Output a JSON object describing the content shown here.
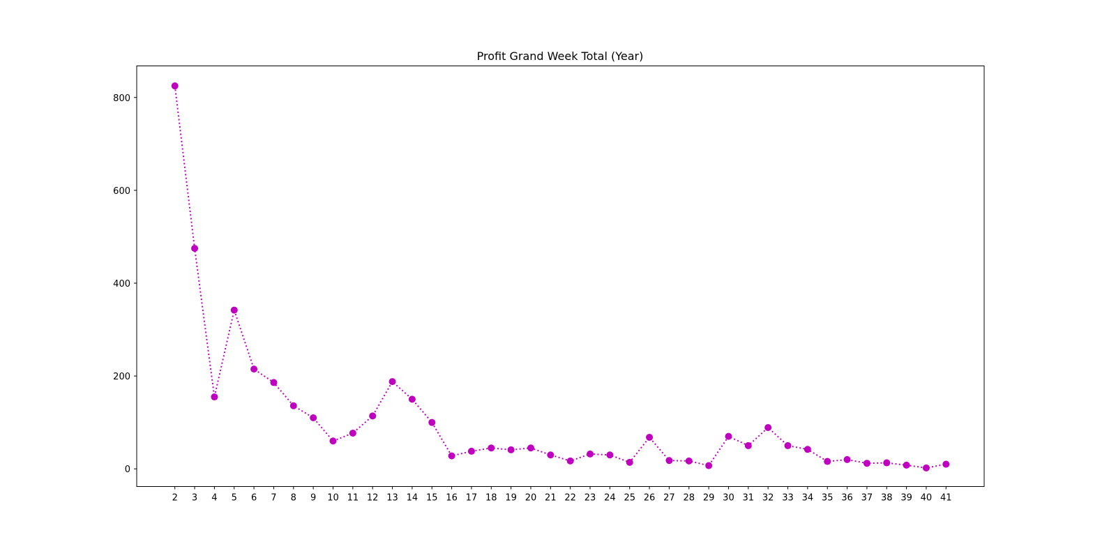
{
  "chart_data": {
    "type": "line",
    "title": "Profit Grand Week Total (Year)",
    "xlabel": "",
    "ylabel": "",
    "x": [
      2,
      3,
      4,
      5,
      6,
      7,
      8,
      9,
      10,
      11,
      12,
      13,
      14,
      15,
      16,
      17,
      18,
      19,
      20,
      21,
      22,
      23,
      24,
      25,
      26,
      27,
      28,
      29,
      30,
      31,
      32,
      33,
      34,
      35,
      36,
      37,
      38,
      39,
      40,
      41
    ],
    "series": [
      {
        "values": [
          825,
          475,
          155,
          342,
          215,
          186,
          136,
          110,
          60,
          77,
          114,
          188,
          150,
          100,
          28,
          38,
          45,
          41,
          45,
          30,
          17,
          32,
          30,
          14,
          68,
          18,
          17,
          7,
          70,
          50,
          89,
          50,
          42,
          16,
          20,
          12,
          13,
          8,
          2,
          10
        ],
        "color": "#bf00bf",
        "line_style": "dotted",
        "marker": "circle"
      }
    ],
    "xlim": [
      0.07,
      42.93
    ],
    "ylim": [
      -38,
      868
    ],
    "yticks": [
      0,
      200,
      400,
      600,
      800
    ],
    "grid": false
  }
}
